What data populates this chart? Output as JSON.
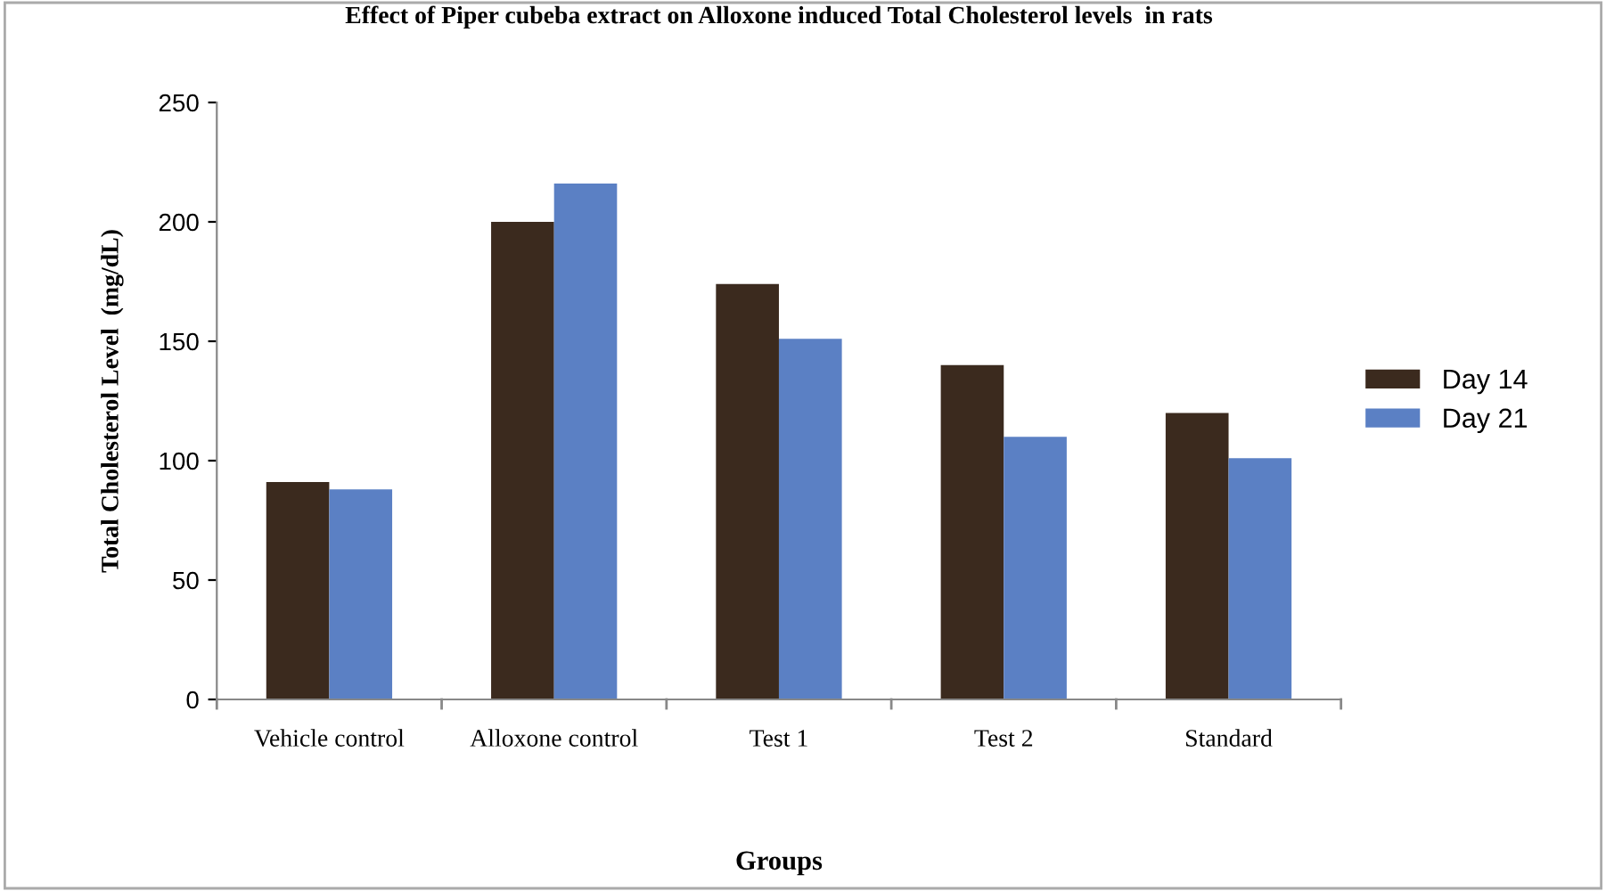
{
  "chart_data": {
    "type": "bar",
    "title": "Effect of Piper cubeba extract on Alloxone induced Total Cholesterol levels  in rats",
    "xlabel": "Groups",
    "ylabel": "Total Cholesterol Level  (mg/dL)",
    "categories": [
      "Vehicle control",
      "Alloxone control",
      "Test 1",
      "Test 2",
      "Standard"
    ],
    "series": [
      {
        "name": "Day 14",
        "color": "#3b2a1e",
        "values": [
          91,
          200,
          174,
          140,
          120
        ]
      },
      {
        "name": "Day 21",
        "color": "#5b80c4",
        "values": [
          88,
          216,
          151,
          110,
          101
        ]
      }
    ],
    "ylim": [
      0,
      250
    ],
    "yticks": [
      0,
      50,
      100,
      150,
      200,
      250
    ],
    "grid": false,
    "legend": "right"
  }
}
